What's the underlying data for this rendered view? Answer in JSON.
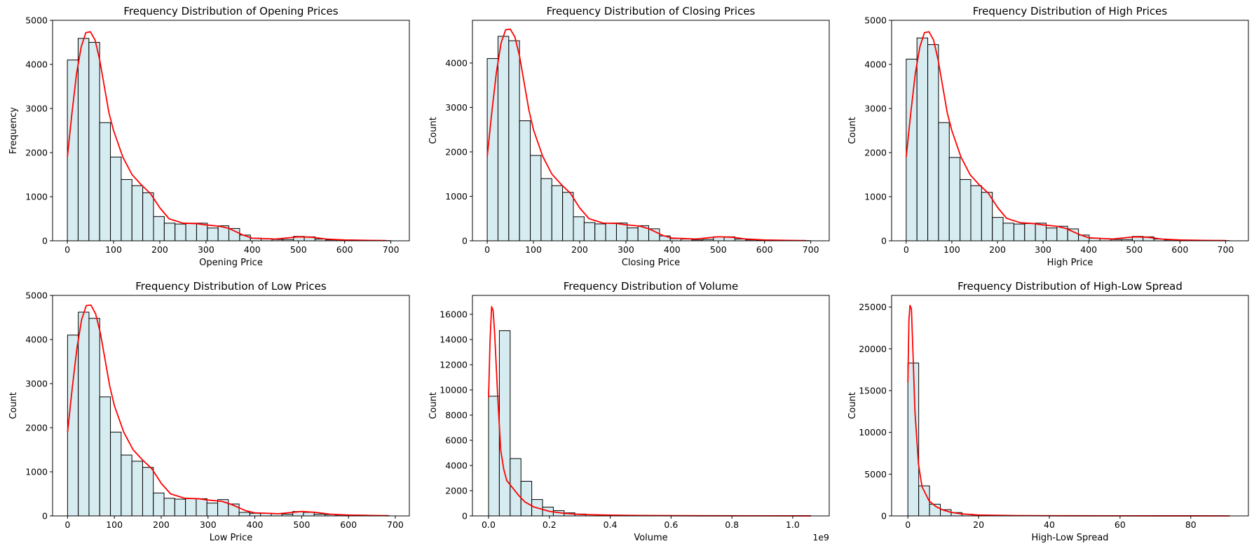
{
  "figure": {
    "bar_fill": "#d6ecf0",
    "bar_edge": "#000000",
    "kde_color": "#ff0000"
  },
  "chart_data": [
    {
      "type": "bar",
      "title": "Frequency Distribution of Opening Prices",
      "xlabel": "Opening Price",
      "ylabel": "Frequency",
      "x_offset_label": "",
      "xlim": [
        -32,
        740
      ],
      "ylim": [
        0,
        5000
      ],
      "xticks": [
        0,
        100,
        200,
        300,
        400,
        500,
        600,
        700
      ],
      "xtick_labels": [
        "0",
        "100",
        "200",
        "300",
        "400",
        "500",
        "600",
        "700"
      ],
      "yticks": [
        0,
        1000,
        2000,
        3000,
        4000,
        5000
      ],
      "ytick_labels": [
        "0",
        "1000",
        "2000",
        "3000",
        "4000",
        "5000"
      ],
      "bin_start": 0,
      "bin_width": 23.3,
      "values": [
        4100,
        4590,
        4500,
        2680,
        1900,
        1390,
        1250,
        1090,
        550,
        400,
        380,
        400,
        400,
        290,
        340,
        280,
        130,
        60,
        50,
        30,
        30,
        100,
        90,
        40,
        20,
        20,
        10,
        10,
        5,
        5
      ],
      "kde": {
        "x": [
          0,
          10,
          20,
          30,
          40,
          50,
          60,
          70,
          80,
          90,
          100,
          120,
          140,
          160,
          180,
          200,
          220,
          250,
          280,
          300,
          330,
          350,
          380,
          400,
          450,
          480,
          500,
          530,
          560,
          600,
          650,
          690
        ],
        "y": [
          1900,
          2900,
          3800,
          4400,
          4720,
          4740,
          4550,
          4100,
          3500,
          2900,
          2500,
          1900,
          1500,
          1270,
          1070,
          750,
          500,
          400,
          390,
          360,
          330,
          280,
          130,
          60,
          40,
          70,
          90,
          80,
          40,
          20,
          10,
          5
        ]
      }
    },
    {
      "type": "bar",
      "title": "Frequency Distribution of Closing Prices",
      "xlabel": "Closing Price",
      "ylabel": "Count",
      "x_offset_label": "",
      "xlim": [
        -32,
        740
      ],
      "ylim": [
        0,
        4960
      ],
      "xticks": [
        0,
        100,
        200,
        300,
        400,
        500,
        600,
        700
      ],
      "xtick_labels": [
        "0",
        "100",
        "200",
        "300",
        "400",
        "500",
        "600",
        "700"
      ],
      "yticks": [
        0,
        1000,
        2000,
        3000,
        4000
      ],
      "ytick_labels": [
        "0",
        "1000",
        "2000",
        "3000",
        "4000"
      ],
      "bin_start": 0,
      "bin_width": 23.3,
      "values": [
        4100,
        4600,
        4500,
        2700,
        1920,
        1400,
        1240,
        1090,
        540,
        410,
        380,
        400,
        400,
        290,
        340,
        270,
        110,
        50,
        40,
        20,
        30,
        90,
        90,
        40,
        20,
        10,
        10,
        10,
        5,
        5
      ],
      "kde": {
        "x": [
          0,
          10,
          20,
          30,
          40,
          50,
          60,
          70,
          80,
          90,
          100,
          120,
          140,
          160,
          180,
          200,
          220,
          250,
          280,
          300,
          330,
          350,
          380,
          400,
          450,
          480,
          500,
          530,
          560,
          600,
          650,
          690
        ],
        "y": [
          1900,
          2900,
          3800,
          4450,
          4750,
          4760,
          4580,
          4150,
          3550,
          2950,
          2500,
          1900,
          1500,
          1270,
          1070,
          740,
          500,
          400,
          390,
          360,
          330,
          270,
          120,
          60,
          40,
          70,
          90,
          80,
          40,
          20,
          10,
          5
        ]
      }
    },
    {
      "type": "bar",
      "title": "Frequency Distribution of High Prices",
      "xlabel": "High Price",
      "ylabel": "Count",
      "x_offset_label": "",
      "xlim": [
        -32,
        750
      ],
      "ylim": [
        0,
        5000
      ],
      "xticks": [
        0,
        100,
        200,
        300,
        400,
        500,
        600,
        700
      ],
      "xtick_labels": [
        "0",
        "100",
        "200",
        "300",
        "400",
        "500",
        "600",
        "700"
      ],
      "yticks": [
        0,
        1000,
        2000,
        3000,
        4000,
        5000
      ],
      "ytick_labels": [
        "0",
        "1000",
        "2000",
        "3000",
        "4000",
        "5000"
      ],
      "bin_start": 0,
      "bin_width": 23.6,
      "values": [
        4120,
        4600,
        4450,
        2680,
        1890,
        1390,
        1250,
        1100,
        530,
        400,
        380,
        390,
        400,
        290,
        330,
        270,
        130,
        60,
        50,
        30,
        30,
        100,
        90,
        40,
        20,
        20,
        10,
        10,
        5,
        5
      ],
      "kde": {
        "x": [
          0,
          10,
          20,
          30,
          40,
          50,
          60,
          70,
          80,
          90,
          100,
          120,
          140,
          160,
          180,
          200,
          220,
          250,
          280,
          300,
          330,
          350,
          380,
          400,
          450,
          480,
          500,
          530,
          560,
          600,
          650,
          700
        ],
        "y": [
          1900,
          2900,
          3800,
          4400,
          4720,
          4740,
          4550,
          4100,
          3500,
          2900,
          2500,
          1900,
          1500,
          1270,
          1080,
          760,
          510,
          410,
          390,
          360,
          330,
          280,
          140,
          70,
          40,
          70,
          90,
          80,
          40,
          20,
          10,
          5
        ]
      }
    },
    {
      "type": "bar",
      "title": "Frequency Distribution of Low Prices",
      "xlabel": "Low Price",
      "ylabel": "Count",
      "x_offset_label": "",
      "xlim": [
        -32,
        730
      ],
      "ylim": [
        0,
        5000
      ],
      "xticks": [
        0,
        100,
        200,
        300,
        400,
        500,
        600,
        700
      ],
      "xtick_labels": [
        "0",
        "100",
        "200",
        "300",
        "400",
        "500",
        "600",
        "700"
      ],
      "yticks": [
        0,
        1000,
        2000,
        3000,
        4000,
        5000
      ],
      "ytick_labels": [
        "0",
        "1000",
        "2000",
        "3000",
        "4000",
        "5000"
      ],
      "bin_start": 0,
      "bin_width": 22.9,
      "values": [
        4100,
        4620,
        4480,
        2700,
        1900,
        1380,
        1240,
        1100,
        520,
        400,
        380,
        390,
        390,
        290,
        370,
        270,
        80,
        60,
        60,
        50,
        40,
        100,
        80,
        40,
        30,
        20,
        10,
        10,
        5,
        5
      ],
      "kde": {
        "x": [
          0,
          10,
          20,
          30,
          40,
          50,
          60,
          70,
          80,
          90,
          100,
          120,
          140,
          160,
          180,
          200,
          220,
          250,
          280,
          300,
          330,
          350,
          380,
          400,
          450,
          480,
          500,
          530,
          560,
          600,
          650,
          685
        ],
        "y": [
          1900,
          2900,
          3800,
          4450,
          4770,
          4780,
          4580,
          4150,
          3550,
          2950,
          2500,
          1900,
          1500,
          1270,
          1070,
          740,
          500,
          400,
          390,
          360,
          330,
          260,
          120,
          70,
          50,
          80,
          100,
          80,
          40,
          20,
          10,
          5
        ]
      }
    },
    {
      "type": "bar",
      "title": "Frequency Distribution of Volume",
      "xlabel": "Volume",
      "ylabel": "Count",
      "x_offset_label": "1e9",
      "xlim": [
        -0.053,
        1.12
      ],
      "ylim": [
        0,
        17500
      ],
      "xticks": [
        0,
        0.2,
        0.4,
        0.6,
        0.8,
        1.0
      ],
      "xtick_labels": [
        "0.0",
        "0.2",
        "0.4",
        "0.6",
        "0.8",
        "1.0"
      ],
      "yticks": [
        0,
        2000,
        4000,
        6000,
        8000,
        10000,
        12000,
        14000,
        16000
      ],
      "ytick_labels": [
        "0",
        "2000",
        "4000",
        "6000",
        "8000",
        "10000",
        "12000",
        "14000",
        "16000"
      ],
      "bin_start": 0,
      "bin_width": 0.0355,
      "values": [
        9500,
        14700,
        4550,
        2750,
        1300,
        700,
        420,
        240,
        150,
        100,
        70,
        50,
        40,
        30,
        20,
        15,
        10,
        10,
        8,
        5,
        5,
        5,
        4,
        3,
        3,
        2,
        2,
        1,
        1,
        1
      ],
      "kde": {
        "x": [
          0,
          0.005,
          0.01,
          0.015,
          0.02,
          0.03,
          0.04,
          0.05,
          0.06,
          0.08,
          0.1,
          0.12,
          0.15,
          0.2,
          0.25,
          0.3,
          0.4,
          0.5,
          0.7,
          0.9,
          1.06
        ],
        "y": [
          9400,
          14000,
          16600,
          16300,
          14500,
          9500,
          5200,
          3700,
          2800,
          2200,
          1600,
          1100,
          700,
          360,
          200,
          120,
          60,
          30,
          10,
          5,
          3
        ]
      }
    },
    {
      "type": "bar",
      "title": "Frequency Distribution of High-Low Spread",
      "xlabel": "High-Low Spread",
      "ylabel": "Count",
      "x_offset_label": "",
      "xlim": [
        -4.6,
        96.3
      ],
      "ylim": [
        0,
        26400
      ],
      "xticks": [
        0,
        20,
        40,
        60,
        80
      ],
      "xtick_labels": [
        "0",
        "20",
        "40",
        "60",
        "80"
      ],
      "yticks": [
        0,
        5000,
        10000,
        15000,
        20000,
        25000
      ],
      "ytick_labels": [
        "0",
        "5000",
        "10000",
        "15000",
        "20000",
        "25000"
      ],
      "bin_start": 0,
      "bin_width": 3.06,
      "values": [
        18300,
        3600,
        1400,
        750,
        400,
        200,
        120,
        80,
        50,
        30,
        20,
        15,
        10,
        8,
        5,
        5,
        4,
        3,
        3,
        2,
        2,
        1,
        1,
        1,
        1,
        1,
        1,
        1,
        1,
        1
      ],
      "kde": {
        "x": [
          0,
          0.3,
          0.6,
          1.0,
          1.4,
          2,
          3,
          4,
          6,
          8,
          10,
          12,
          15,
          20,
          30,
          40,
          60,
          80,
          91
        ],
        "y": [
          16000,
          23500,
          25200,
          24800,
          20000,
          12500,
          6200,
          3500,
          1800,
          1100,
          700,
          450,
          250,
          100,
          40,
          20,
          8,
          3,
          1
        ]
      }
    }
  ]
}
